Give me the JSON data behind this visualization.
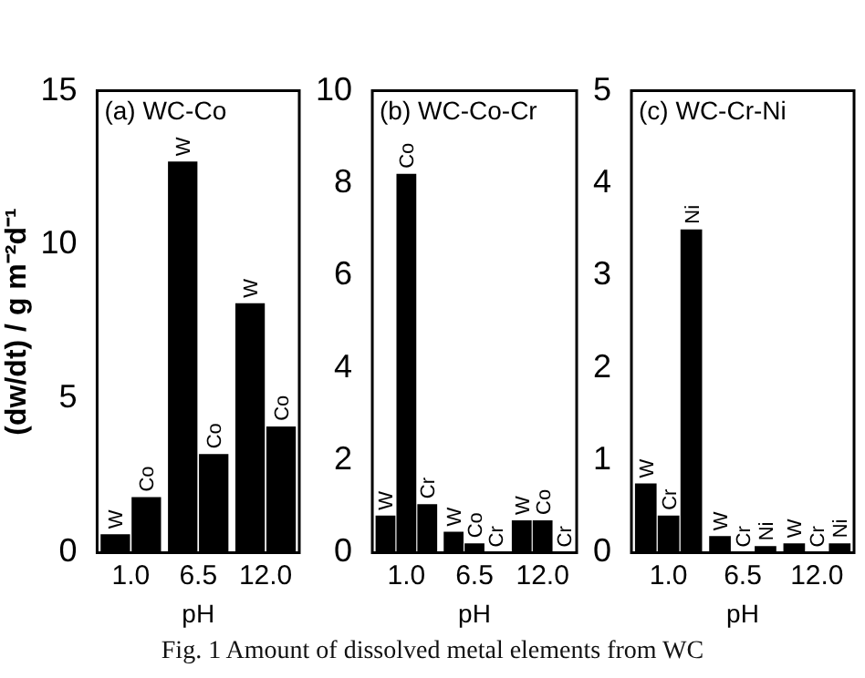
{
  "chart_data": [
    {
      "type": "bar",
      "title": "(a) WC-Co",
      "xlabel": "pH",
      "ylabel": "(dw/dt) / g m⁻²d⁻¹",
      "categories": [
        "1.0",
        "6.5",
        "12.0"
      ],
      "series": [
        {
          "name": "W",
          "color": "#000000",
          "values": [
            0.6,
            12.7,
            8.1
          ]
        },
        {
          "name": "Co",
          "color": "#000000",
          "values": [
            1.8,
            3.2,
            4.1
          ]
        }
      ],
      "ylim": [
        0,
        15
      ],
      "yticks": [
        0,
        5,
        10,
        15
      ],
      "legend": false,
      "grid": false,
      "annotations": [
        "Fig. 1  Amount of dissolved metal elements from WC"
      ]
    },
    {
      "type": "bar",
      "title": "(b) WC-Co-Cr",
      "xlabel": "pH",
      "categories": [
        "1.0",
        "6.5",
        "12.0"
      ],
      "series": [
        {
          "name": "W",
          "color": "#000000",
          "values": [
            0.8,
            0.45,
            0.7
          ]
        },
        {
          "name": "Co",
          "color": "#000000",
          "values": [
            8.2,
            0.2,
            0.7
          ]
        },
        {
          "name": "Cr",
          "color": "#000000",
          "values": [
            1.05,
            0,
            0
          ]
        }
      ],
      "ylim": [
        0,
        10
      ],
      "yticks": [
        0,
        2,
        4,
        6,
        8,
        10
      ],
      "legend": false,
      "grid": false
    },
    {
      "type": "bar",
      "title": "(c) WC-Cr-Ni",
      "xlabel": "pH",
      "categories": [
        "1.0",
        "6.5",
        "12.0"
      ],
      "series": [
        {
          "name": "W",
          "color": "#000000",
          "values": [
            0.75,
            0.18,
            0.1
          ]
        },
        {
          "name": "Cr",
          "color": "#000000",
          "values": [
            0.4,
            0,
            0
          ]
        },
        {
          "name": "Ni",
          "color": "#000000",
          "values": [
            3.5,
            0.07,
            0.1
          ]
        }
      ],
      "ylim": [
        0,
        5
      ],
      "yticks": [
        0,
        1,
        2,
        3,
        4,
        5
      ],
      "legend": false,
      "grid": false
    }
  ]
}
